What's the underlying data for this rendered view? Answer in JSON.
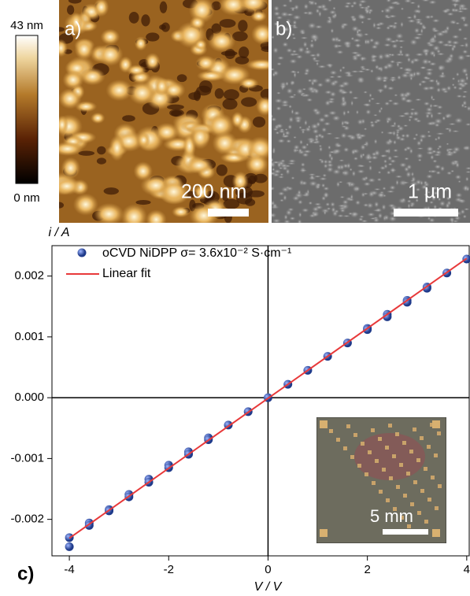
{
  "panels": {
    "a": {
      "label": "a)",
      "scale_bar": "200 nm",
      "colorbar_top": "43 nm",
      "colorbar_bottom": "0 nm"
    },
    "b": {
      "label": "b)",
      "scale_bar": "1 µm"
    },
    "c": {
      "label": "c)",
      "inset_scale_bar": "5 mm"
    }
  },
  "chart_data": {
    "type": "scatter",
    "x_label": "V / V",
    "y_label": "i / A",
    "x": [
      -4,
      -4,
      -3.6,
      -3.6,
      -3.2,
      -3.2,
      -2.8,
      -2.8,
      -2.4,
      -2.4,
      -2,
      -2,
      -1.6,
      -1.6,
      -1.2,
      -1.2,
      -0.8,
      -0.4,
      0,
      0.4,
      0.8,
      1.2,
      1.6,
      2,
      2,
      2.4,
      2.4,
      2.8,
      2.8,
      3.2,
      3.2,
      3.6,
      4
    ],
    "series": [
      {
        "name": "oCVD NiDPP σ= 3.6x10⁻² S·cm⁻¹",
        "color": "#2f52a8",
        "values": [
          -0.0023,
          -0.00245,
          -0.00206,
          -0.0021,
          -0.00184,
          -0.00186,
          -0.00159,
          -0.00163,
          -0.00134,
          -0.00139,
          -0.00111,
          -0.00115,
          -0.00089,
          -0.00093,
          -0.00066,
          -0.00069,
          -0.00045,
          -0.00023,
          0,
          0.00022,
          0.00045,
          0.00068,
          0.0009,
          0.00114,
          0.00112,
          0.00137,
          0.00133,
          0.0016,
          0.00157,
          0.00182,
          0.0018,
          0.00205,
          0.00228
        ]
      },
      {
        "name": "Linear fit",
        "color": "#e8393a",
        "type": "line",
        "x": [
          -4,
          4
        ],
        "values": [
          -0.00231,
          0.00229
        ]
      }
    ],
    "xlim": [
      -4.35,
      4.05
    ],
    "ylim": [
      -0.0026,
      0.0025
    ],
    "xticks": [
      -4,
      -2,
      0,
      2,
      4
    ],
    "yticks": [
      -0.002,
      -0.001,
      {
        "value": 0,
        "label": "0.000"
      },
      0.001,
      0.002
    ]
  }
}
